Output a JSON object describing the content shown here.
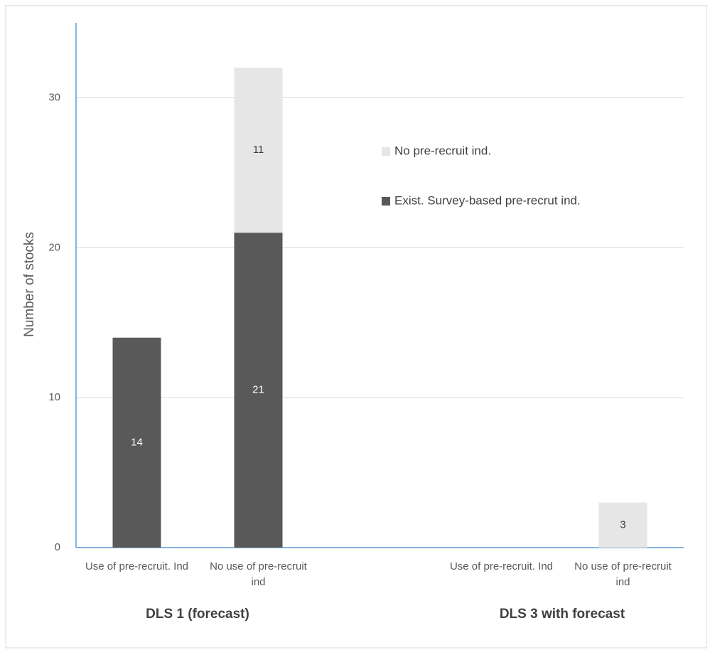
{
  "chart_data": {
    "type": "stacked_bar",
    "y_axis_label": "Number of stocks",
    "categories": [
      "Use of pre-recruit. Ind",
      "No use of pre-recruit ind",
      null,
      "Use of pre-recruit. Ind",
      "No use of pre-recruit ind"
    ],
    "groups": [
      "DLS 1 (forecast)",
      "DLS 3 with forecast"
    ],
    "series": [
      {
        "name": "Exist. Survey-based pre-recrut ind.",
        "color": "#595959",
        "label_color": "#ffffff",
        "values": [
          14,
          21,
          null,
          null,
          null
        ]
      },
      {
        "name": "No pre-recruit ind.",
        "color": "#e7e6e6",
        "label_color": "#404040",
        "values": [
          null,
          11,
          null,
          null,
          3
        ]
      }
    ],
    "ylim": [
      0,
      35
    ],
    "yticks": [
      0,
      10,
      20,
      30
    ],
    "grid": true
  }
}
